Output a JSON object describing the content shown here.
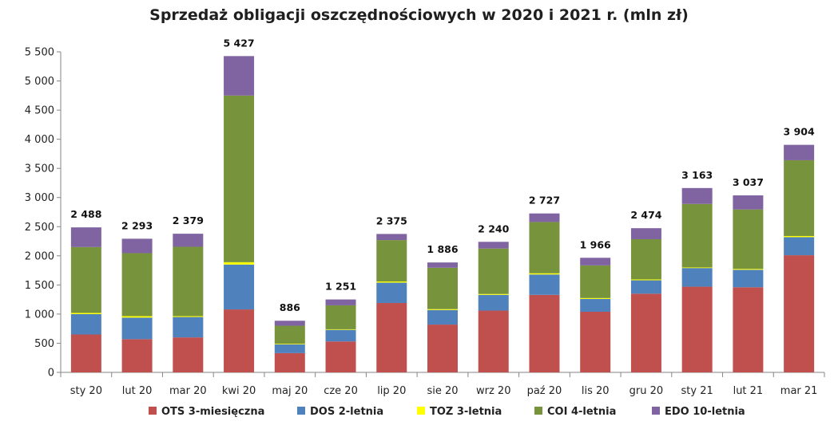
{
  "chart_data": {
    "type": "bar",
    "stacked": true,
    "title": "Sprzedaż obligacji oszczędnościowych w 2020 i 2021 r. (mln zł)",
    "categories": [
      "sty 20",
      "lut 20",
      "mar 20",
      "kwi 20",
      "maj 20",
      "cze 20",
      "lip 20",
      "sie 20",
      "wrz 20",
      "paź 20",
      "lis 20",
      "gru 20",
      "sty 21",
      "lut 21",
      "mar 21"
    ],
    "ylim": [
      0,
      5500
    ],
    "yticks": [
      0,
      500,
      1000,
      1500,
      2000,
      2500,
      3000,
      3500,
      4000,
      4500,
      5000,
      5500
    ],
    "ytick_labels": [
      "0",
      "500",
      "1 000",
      "1 500",
      "2 000",
      "2 500",
      "3 000",
      "3 500",
      "4 000",
      "4 500",
      "5 000",
      "5 500"
    ],
    "grid": false,
    "legend_position": "bottom",
    "series": [
      {
        "name": "OTS 3-miesięczna",
        "color": "#c0504d",
        "values": [
          650,
          570,
          600,
          1080,
          330,
          530,
          1190,
          820,
          1060,
          1330,
          1040,
          1350,
          1470,
          1460,
          2010
        ]
      },
      {
        "name": "DOS 2-letnia",
        "color": "#4f81bd",
        "values": [
          350,
          370,
          350,
          770,
          150,
          200,
          350,
          250,
          270,
          350,
          220,
          230,
          320,
          300,
          310
        ]
      },
      {
        "name": "TOZ 3-letnia",
        "color": "#ffff00",
        "values": [
          20,
          25,
          15,
          40,
          10,
          10,
          20,
          15,
          15,
          20,
          15,
          15,
          10,
          15,
          20
        ]
      },
      {
        "name": "COI 4-letnia",
        "color": "#77933c",
        "values": [
          1130,
          1080,
          1190,
          2860,
          310,
          410,
          710,
          710,
          780,
          880,
          560,
          690,
          1090,
          1020,
          1300
        ]
      },
      {
        "name": "EDO 10-letnia",
        "color": "#8064a2",
        "values": [
          338,
          248,
          224,
          677,
          86,
          101,
          105,
          91,
          115,
          147,
          131,
          189,
          273,
          242,
          264
        ]
      }
    ],
    "totals": [
      "2 488",
      "2 293",
      "2 379",
      "5 427",
      "886",
      "1 251",
      "2 375",
      "1 886",
      "2 240",
      "2 727",
      "1 966",
      "2 474",
      "3 163",
      "3 037",
      "3 904"
    ]
  }
}
